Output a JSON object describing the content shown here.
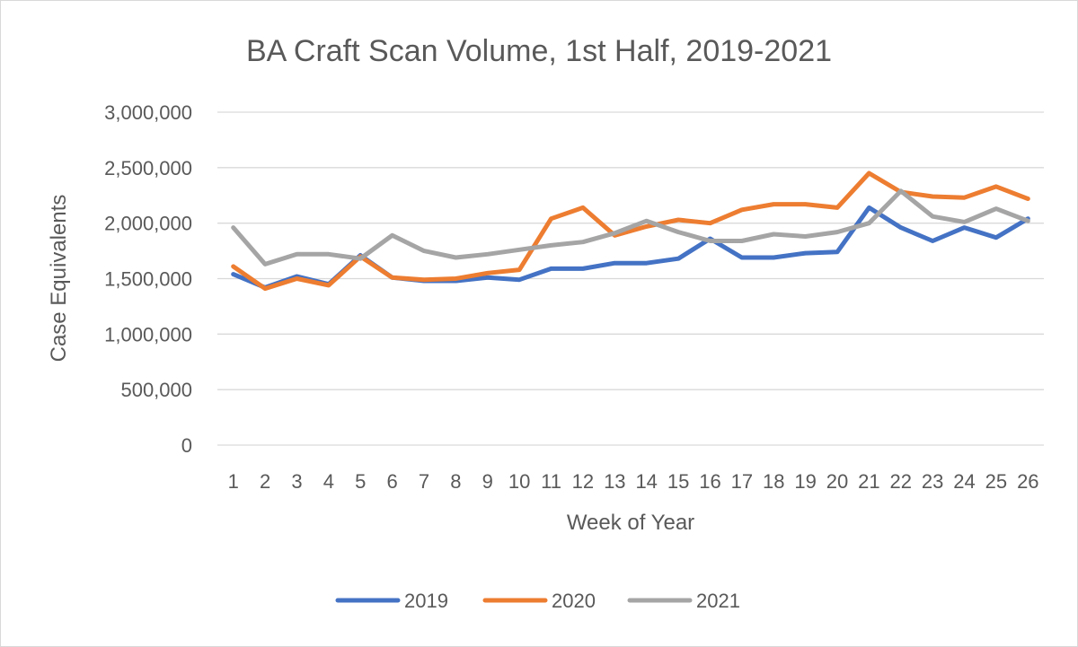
{
  "chart_data": {
    "type": "line",
    "title": "BA Craft Scan Volume, 1st Half, 2019-2021",
    "xlabel": "Week of Year",
    "ylabel": "Case Equivalents",
    "ylim": [
      0,
      3000000
    ],
    "yticks": [
      0,
      500000,
      1000000,
      1500000,
      2000000,
      2500000,
      3000000
    ],
    "ytick_labels": [
      "0",
      "500,000",
      "1,000,000",
      "1,500,000",
      "2,000,000",
      "2,500,000",
      "3,000,000"
    ],
    "categories": [
      "1",
      "2",
      "3",
      "4",
      "5",
      "6",
      "7",
      "8",
      "9",
      "10",
      "11",
      "12",
      "13",
      "14",
      "15",
      "16",
      "17",
      "18",
      "19",
      "20",
      "21",
      "22",
      "23",
      "24",
      "25",
      "26"
    ],
    "grid": true,
    "legend": "bottom",
    "series": [
      {
        "name": "2019",
        "color": "#4472c4",
        "values": [
          1540000,
          1420000,
          1520000,
          1450000,
          1710000,
          1510000,
          1480000,
          1480000,
          1510000,
          1490000,
          1590000,
          1590000,
          1640000,
          1640000,
          1680000,
          1860000,
          1690000,
          1690000,
          1730000,
          1740000,
          2140000,
          1960000,
          1840000,
          1960000,
          1870000,
          2040000
        ]
      },
      {
        "name": "2020",
        "color": "#ed7d31",
        "values": [
          1610000,
          1410000,
          1500000,
          1440000,
          1700000,
          1510000,
          1490000,
          1500000,
          1550000,
          1580000,
          2040000,
          2140000,
          1890000,
          1970000,
          2030000,
          2000000,
          2120000,
          2170000,
          2170000,
          2140000,
          2450000,
          2280000,
          2240000,
          2230000,
          2330000,
          2220000
        ]
      },
      {
        "name": "2021",
        "color": "#a5a5a5",
        "values": [
          1960000,
          1630000,
          1720000,
          1720000,
          1680000,
          1890000,
          1750000,
          1690000,
          1720000,
          1760000,
          1800000,
          1830000,
          1910000,
          2020000,
          1920000,
          1840000,
          1840000,
          1900000,
          1880000,
          1920000,
          2000000,
          2290000,
          2060000,
          2010000,
          2130000,
          2020000
        ]
      }
    ]
  }
}
